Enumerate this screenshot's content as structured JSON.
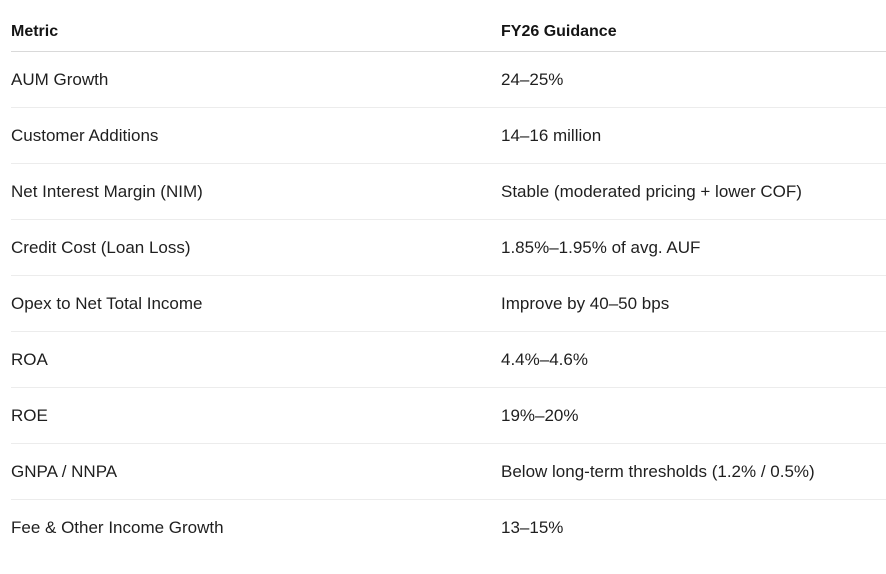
{
  "table": {
    "headers": [
      "Metric",
      "FY26 Guidance"
    ],
    "rows": [
      [
        "AUM Growth",
        "24–25%"
      ],
      [
        "Customer Additions",
        "14–16 million"
      ],
      [
        "Net Interest Margin (NIM)",
        "Stable (moderated pricing + lower COF)"
      ],
      [
        "Credit Cost (Loan Loss)",
        "1.85%–1.95% of avg. AUF"
      ],
      [
        "Opex to Net Total Income",
        "Improve by 40–50 bps"
      ],
      [
        "ROA",
        "4.4%–4.6%"
      ],
      [
        "ROE",
        "19%–20%"
      ],
      [
        "GNPA / NNPA",
        "Below long-term thresholds (1.2% / 0.5%)"
      ],
      [
        "Fee & Other Income Growth",
        "13–15%"
      ]
    ]
  }
}
